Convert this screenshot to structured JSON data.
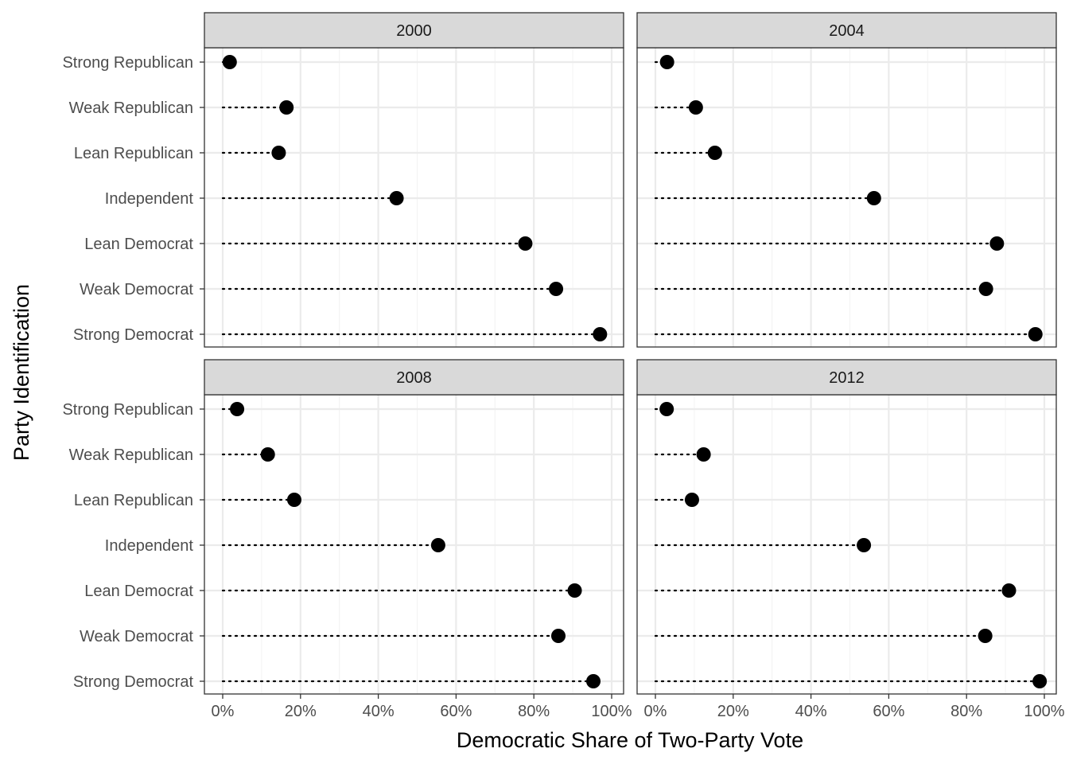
{
  "chart_data": {
    "type": "scatter",
    "subtype": "faceted-dot-plot",
    "xlabel": "Democratic Share of Two-Party Vote",
    "ylabel": "Party Identification",
    "x_ticks": [
      "0%",
      "20%",
      "40%",
      "60%",
      "80%",
      "100%"
    ],
    "x_tick_values": [
      0,
      20,
      40,
      60,
      80,
      100
    ],
    "xlim": [
      0,
      100
    ],
    "grid": true,
    "categories": [
      "Strong Republican",
      "Weak Republican",
      "Lean Republican",
      "Independent",
      "Lean Democrat",
      "Weak Democrat",
      "Strong Democrat"
    ],
    "panels": [
      {
        "facet": "2000",
        "values": [
          1.8,
          16.4,
          14.4,
          44.7,
          77.8,
          85.7,
          97.0
        ]
      },
      {
        "facet": "2004",
        "values": [
          3.0,
          10.4,
          15.3,
          56.2,
          87.8,
          85.0,
          97.7
        ]
      },
      {
        "facet": "2008",
        "values": [
          3.7,
          11.6,
          18.4,
          55.4,
          90.5,
          86.3,
          95.3
        ]
      },
      {
        "facet": "2012",
        "values": [
          2.9,
          12.4,
          9.4,
          53.6,
          90.9,
          84.8,
          98.8
        ]
      }
    ]
  }
}
